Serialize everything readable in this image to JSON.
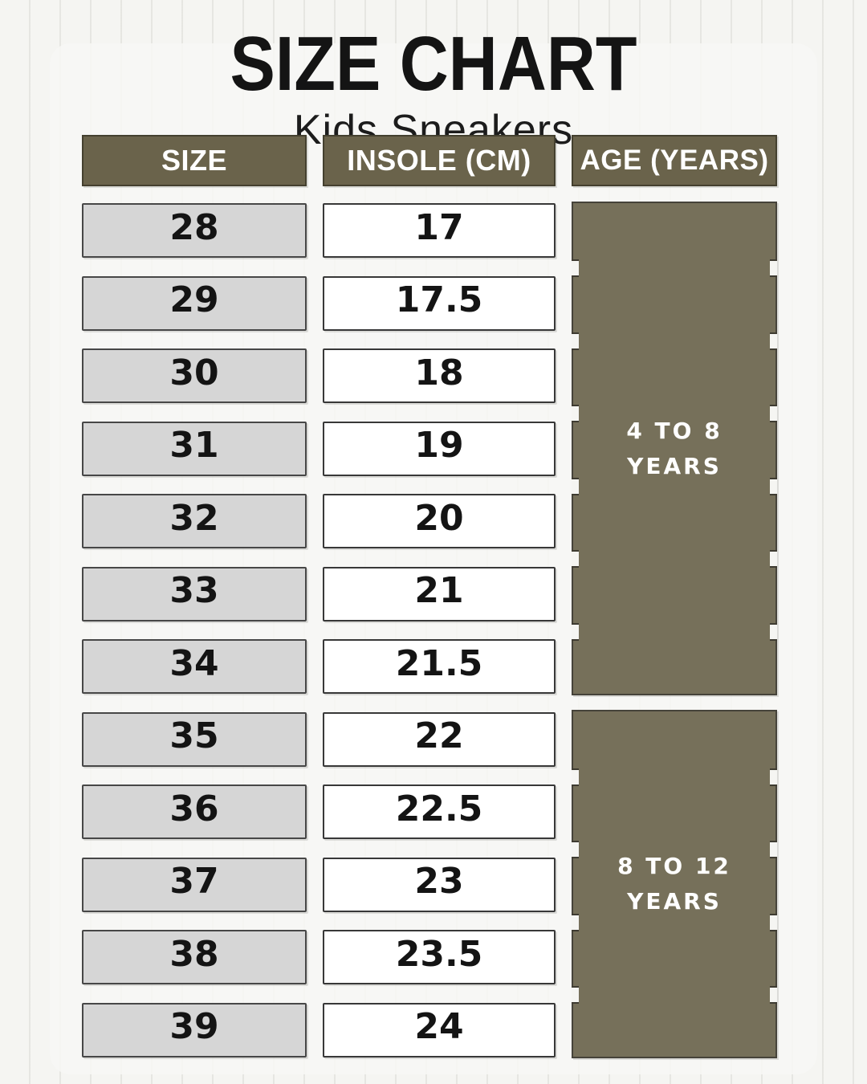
{
  "poster": {
    "title": "SIZE CHART",
    "subtitle": "Kids Sneakers"
  },
  "chart_data": {
    "type": "table",
    "title": "SIZE CHART",
    "subtitle": "Kids Sneakers",
    "columns": [
      "SIZE",
      "INSOLE (CM)",
      "AGE (YEARS)"
    ],
    "rows": [
      {
        "size": "28",
        "insole_cm": "17"
      },
      {
        "size": "29",
        "insole_cm": "17.5"
      },
      {
        "size": "30",
        "insole_cm": "18"
      },
      {
        "size": "31",
        "insole_cm": "19"
      },
      {
        "size": "32",
        "insole_cm": "20"
      },
      {
        "size": "33",
        "insole_cm": "21"
      },
      {
        "size": "34",
        "insole_cm": "21.5"
      },
      {
        "size": "35",
        "insole_cm": "22"
      },
      {
        "size": "36",
        "insole_cm": "22.5"
      },
      {
        "size": "37",
        "insole_cm": "23"
      },
      {
        "size": "38",
        "insole_cm": "23.5"
      },
      {
        "size": "39",
        "insole_cm": "24"
      }
    ],
    "age_groups": [
      {
        "label": "4 TO 8 YEARS",
        "lines": [
          "4 TO 8",
          "YEARS"
        ],
        "sizes_covered": "28-34",
        "rows_spanned": 7
      },
      {
        "label": "8 TO 12 YEARS",
        "lines": [
          "8 TO 12",
          "YEARS"
        ],
        "sizes_covered": "35-39",
        "rows_spanned": 5
      }
    ]
  },
  "colors": {
    "page_bg": "#f5f5f2",
    "header_bg": "#6a634b",
    "age_block_bg": "#76705a",
    "size_cell_bg": "#d6d6d6",
    "insole_cell_bg": "#ffffff",
    "text_dark": "#141414",
    "text_light": "#ffffff"
  }
}
